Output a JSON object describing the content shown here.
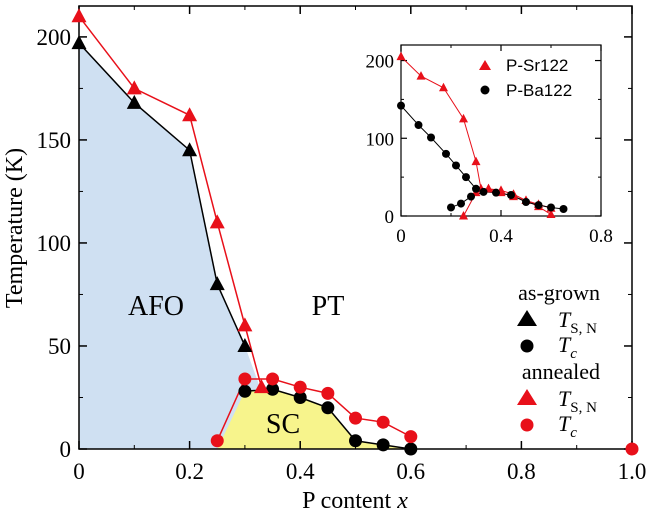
{
  "chart_data": {
    "type": "scatter",
    "xlabel": "P content x",
    "ylabel": "Temperature (K)",
    "xlim": [
      0,
      1.0
    ],
    "ylim": [
      0,
      215
    ],
    "xticks": [
      "0",
      "0.2",
      "0.4",
      "0.6",
      "0.8",
      "1.0"
    ],
    "yticks": [
      "0",
      "50",
      "100",
      "150",
      "200"
    ],
    "regions": {
      "afo": "AFO",
      "pt": "PT",
      "sc": "SC"
    },
    "series": [
      {
        "name": "as-grown T_S,N",
        "marker": "triangle",
        "color": "#000000",
        "points": [
          [
            0,
            197
          ],
          [
            0.1,
            168
          ],
          [
            0.2,
            145
          ],
          [
            0.25,
            80
          ],
          [
            0.3,
            50
          ]
        ]
      },
      {
        "name": "as-grown T_c",
        "marker": "circle",
        "color": "#000000",
        "points": [
          [
            0.3,
            28
          ],
          [
            0.35,
            29
          ],
          [
            0.4,
            25
          ],
          [
            0.45,
            20
          ],
          [
            0.5,
            4
          ],
          [
            0.55,
            2
          ],
          [
            0.6,
            0
          ]
        ]
      },
      {
        "name": "annealed T_S,N",
        "marker": "triangle",
        "color": "#e8101a",
        "points": [
          [
            0,
            210
          ],
          [
            0.1,
            175
          ],
          [
            0.2,
            162
          ],
          [
            0.25,
            110
          ],
          [
            0.3,
            60
          ],
          [
            0.33,
            30
          ]
        ]
      },
      {
        "name": "annealed T_c",
        "marker": "circle",
        "color": "#e8101a",
        "points": [
          [
            0.25,
            4
          ],
          [
            0.3,
            34
          ],
          [
            0.35,
            34
          ],
          [
            0.4,
            30
          ],
          [
            0.45,
            27
          ],
          [
            0.5,
            15
          ],
          [
            0.55,
            13
          ],
          [
            0.6,
            6
          ],
          [
            1.0,
            0
          ]
        ]
      }
    ],
    "legend": {
      "group1": "as-grown",
      "group2": "annealed",
      "tsn_main": "T",
      "tsn_sub": "S, N",
      "tc_main": "T",
      "tc_sub": "c"
    },
    "inset": {
      "xlim": [
        0,
        0.8
      ],
      "ylim": [
        0,
        220
      ],
      "xticks": [
        "0",
        "0.4",
        "0.8"
      ],
      "yticks": [
        "0",
        "100",
        "200"
      ],
      "series": [
        {
          "name": "P-Sr122",
          "marker": "triangle",
          "color": "#e8101a",
          "points": [
            [
              0,
              205
            ],
            [
              0.08,
              180
            ],
            [
              0.17,
              165
            ],
            [
              0.25,
              125
            ],
            [
              0.3,
              70
            ],
            [
              0.32,
              35
            ],
            [
              0.35,
              35
            ],
            [
              0.4,
              30
            ],
            [
              0.45,
              25
            ],
            [
              0.5,
              20
            ],
            [
              0.55,
              15
            ],
            [
              0.6,
              10
            ]
          ],
          "tc_points": [
            [
              0.25,
              0
            ],
            [
              0.3,
              30
            ],
            [
              0.35,
              35
            ],
            [
              0.4,
              33
            ],
            [
              0.45,
              28
            ],
            [
              0.5,
              20
            ],
            [
              0.55,
              12
            ],
            [
              0.6,
              2
            ]
          ]
        },
        {
          "name": "P-Ba122",
          "marker": "circle",
          "color": "#000000",
          "points": [
            [
              0,
              142
            ],
            [
              0.07,
              117
            ],
            [
              0.12,
              101
            ],
            [
              0.18,
              80
            ],
            [
              0.22,
              65
            ],
            [
              0.26,
              50
            ],
            [
              0.3,
              35
            ]
          ],
          "tc_points": [
            [
              0.2,
              11
            ],
            [
              0.24,
              16
            ],
            [
              0.28,
              25
            ],
            [
              0.33,
              31
            ],
            [
              0.38,
              30
            ],
            [
              0.44,
              27
            ],
            [
              0.5,
              18
            ],
            [
              0.55,
              14
            ],
            [
              0.6,
              11
            ],
            [
              0.65,
              9
            ]
          ]
        }
      ]
    }
  }
}
